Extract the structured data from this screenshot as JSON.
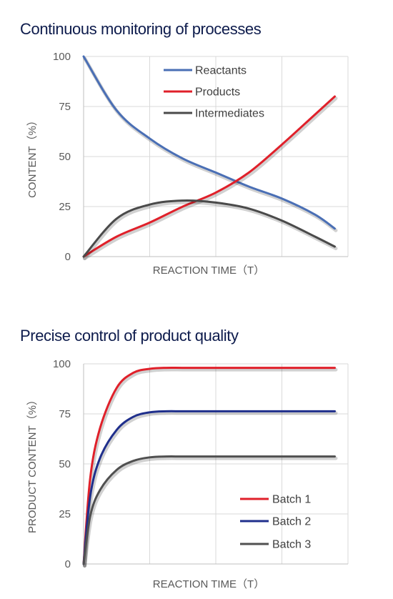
{
  "chart_data": [
    {
      "type": "line",
      "title": "Continuous monitoring of processes",
      "xlabel": "REACTION TIME（T）",
      "ylabel": "CONTENT（%）",
      "ylim": [
        0,
        100
      ],
      "yticks": [
        "0",
        "25",
        "50",
        "75",
        "100"
      ],
      "xlim": [
        0,
        4
      ],
      "grid": true,
      "legend": "top-center",
      "series": [
        {
          "name": "Reactants",
          "color": "#4a6fb5",
          "x": [
            0,
            0.5,
            1,
            1.5,
            2,
            2.5,
            3,
            3.5,
            3.8
          ],
          "y": [
            100,
            73,
            59,
            49,
            42,
            35,
            29,
            21,
            14
          ]
        },
        {
          "name": "Products",
          "color": "#e0202a",
          "x": [
            0,
            0.5,
            1,
            1.5,
            2,
            2.5,
            3,
            3.5,
            3.8
          ],
          "y": [
            0,
            10,
            17,
            25,
            32,
            42,
            56,
            71,
            80
          ]
        },
        {
          "name": "Intermediates",
          "color": "#4a4a4a",
          "x": [
            0,
            0.5,
            1,
            1.5,
            2,
            2.5,
            3,
            3.5,
            3.8
          ],
          "y": [
            0,
            19,
            26,
            28,
            27,
            24,
            18,
            10,
            5
          ]
        }
      ]
    },
    {
      "type": "line",
      "title": "Precise control of product quality",
      "xlabel": "REACTION TIME（T）",
      "ylabel": "PRODUCT CONTENT（%）",
      "ylim": [
        0,
        100
      ],
      "yticks": [
        "0",
        "25",
        "50",
        "75",
        "100"
      ],
      "xlim": [
        0,
        4
      ],
      "grid": true,
      "legend": "bottom-right",
      "series": [
        {
          "name": "Batch 1",
          "color": "#e0202a",
          "x": [
            0,
            0.1,
            0.25,
            0.5,
            0.75,
            1,
            1.25,
            1.5,
            2,
            2.5,
            3,
            3.5,
            3.8
          ],
          "y": [
            0,
            43,
            68,
            88,
            95.5,
            97.5,
            98,
            98,
            98,
            98,
            98,
            98,
            98
          ]
        },
        {
          "name": "Batch 2",
          "color": "#1f2f8c",
          "x": [
            0,
            0.1,
            0.25,
            0.5,
            0.75,
            1,
            1.25,
            1.5,
            2,
            2.5,
            3,
            3.5,
            3.8
          ],
          "y": [
            0,
            34,
            53,
            67,
            73.5,
            75.8,
            76.3,
            76.3,
            76.3,
            76.3,
            76.3,
            76.3,
            76.3
          ]
        },
        {
          "name": "Batch 3",
          "color": "#505050",
          "x": [
            0,
            0.1,
            0.25,
            0.5,
            0.75,
            1,
            1.25,
            1.5,
            2,
            2.5,
            3,
            3.5,
            3.8
          ],
          "y": [
            0,
            24,
            37,
            47,
            51.5,
            53.3,
            53.7,
            53.7,
            53.7,
            53.7,
            53.7,
            53.7,
            53.7
          ]
        }
      ]
    }
  ]
}
